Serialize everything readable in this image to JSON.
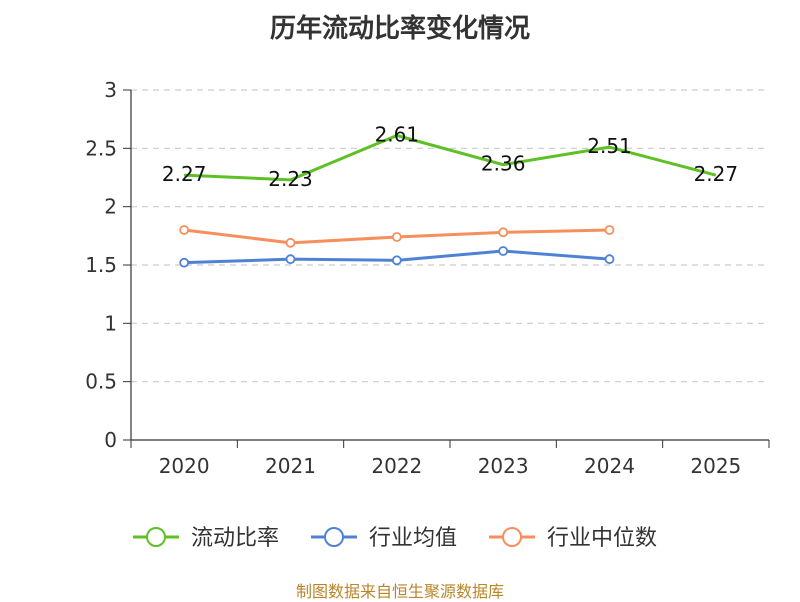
{
  "chart_data": {
    "type": "line",
    "title": "历年流动比率变化情况",
    "categories": [
      "2020",
      "2021",
      "2022",
      "2023",
      "2024",
      "2025"
    ],
    "ylim": [
      0,
      3
    ],
    "yticks": [
      0,
      0.5,
      1,
      1.5,
      2,
      2.5,
      3
    ],
    "ytick_labels": [
      "0",
      "0.5",
      "1",
      "1.5",
      "2",
      "2.5",
      "3"
    ],
    "grid": true,
    "legend_position": "bottom",
    "series": [
      {
        "name": "流动比率",
        "color": "#5dc125",
        "values": [
          2.27,
          2.23,
          2.61,
          2.36,
          2.51,
          2.27
        ],
        "labels": [
          "2.27",
          "2.23",
          "2.61",
          "2.36",
          "2.51",
          "2.27"
        ]
      },
      {
        "name": "行业均值",
        "color": "#4f82d6",
        "values": [
          1.52,
          1.55,
          1.54,
          1.62,
          1.55,
          null
        ]
      },
      {
        "name": "行业中位数",
        "color": "#f68f5c",
        "values": [
          1.8,
          1.69,
          1.74,
          1.78,
          1.8,
          null
        ]
      }
    ]
  },
  "footer": {
    "source": "制图数据来自恒生聚源数据库"
  }
}
